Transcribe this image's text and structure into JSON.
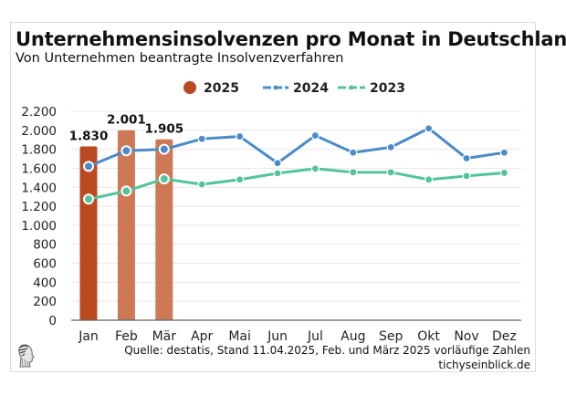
{
  "header": {
    "title": "Unternehmensinsolvenzen pro Monat in Deutschland",
    "subtitle": "Von Unternehmen beantragte Insolvenzverfahren"
  },
  "footer": {
    "source": "Quelle: destatis, Stand 11.04.2025, Feb. und März 2025 vorläufige Zahlen",
    "site": "tichyseinblick.de",
    "logo_icon": "head-profile-logo-icon"
  },
  "chart_data": {
    "type": "bar+line",
    "title": "Unternehmensinsolvenzen pro Monat in Deutschland",
    "subtitle": "Von Unternehmen beantragte Insolvenzverfahren",
    "xlabel": "",
    "ylabel": "",
    "categories": [
      "Jan",
      "Feb",
      "Mär",
      "Apr",
      "Mai",
      "Jun",
      "Jul",
      "Aug",
      "Sep",
      "Okt",
      "Nov",
      "Dez"
    ],
    "ylim": [
      0,
      2200
    ],
    "yticks": [
      0,
      200,
      400,
      600,
      800,
      1000,
      1200,
      1400,
      1600,
      1800,
      2000,
      2200
    ],
    "ytick_labels": [
      "0",
      "200",
      "400",
      "600",
      "800",
      "1.000",
      "1.200",
      "1.400",
      "1.600",
      "1.800",
      "2.000",
      "2.200"
    ],
    "grid": true,
    "legend_position": "top-center",
    "series": [
      {
        "name": "2025",
        "type": "bar",
        "color": "#bb4a22",
        "color_preliminary": "#cd7856",
        "values": [
          1830,
          2001,
          1905
        ],
        "preliminary": [
          false,
          true,
          true
        ],
        "data_labels": [
          "1.830",
          "2.001",
          "1.905"
        ]
      },
      {
        "name": "2024",
        "type": "line",
        "color": "#4b8bc8",
        "values": [
          1620,
          1785,
          1800,
          1910,
          1935,
          1655,
          1945,
          1765,
          1822,
          2020,
          1705,
          1765
        ]
      },
      {
        "name": "2023",
        "type": "line",
        "color": "#52c49a",
        "values": [
          1275,
          1360,
          1488,
          1430,
          1481,
          1548,
          1596,
          1558,
          1558,
          1481,
          1519,
          1552
        ]
      }
    ]
  }
}
